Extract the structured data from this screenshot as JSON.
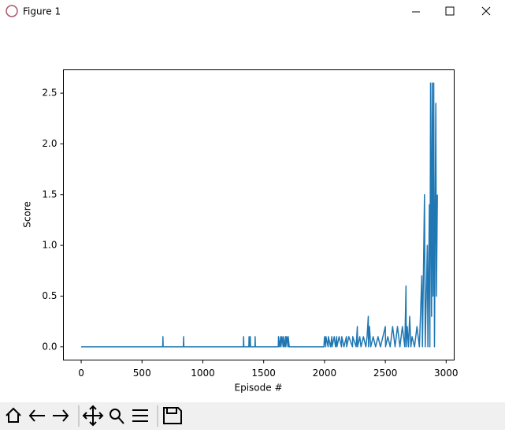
{
  "window": {
    "title": "Figure 1"
  },
  "chart_data": {
    "type": "line",
    "xlabel": "Episode #",
    "ylabel": "Score",
    "color": "#1f77b4",
    "x": [
      0,
      670,
      672,
      674,
      840,
      842,
      844,
      1333,
      1335,
      1337,
      1378,
      1380,
      1382,
      1388,
      1390,
      1392,
      1428,
      1430,
      1432,
      1620,
      1622,
      1630,
      1640,
      1642,
      1650,
      1660,
      1662,
      1670,
      1680,
      1682,
      1690,
      1700,
      1702,
      1710,
      1995,
      2000,
      2010,
      2012,
      2030,
      2032,
      2050,
      2060,
      2062,
      2080,
      2090,
      2100,
      2102,
      2120,
      2140,
      2142,
      2160,
      2180,
      2182,
      2200,
      2230,
      2232,
      2260,
      2270,
      2272,
      2290,
      2300,
      2320,
      2340,
      2350,
      2360,
      2362,
      2370,
      2380,
      2400,
      2420,
      2440,
      2460,
      2480,
      2500,
      2502,
      2520,
      2540,
      2560,
      2580,
      2600,
      2620,
      2640,
      2660,
      2670,
      2672,
      2680,
      2690,
      2700,
      2710,
      2720,
      2740,
      2760,
      2780,
      2800,
      2805,
      2822,
      2828,
      2845,
      2850,
      2862,
      2866,
      2872,
      2880,
      2886,
      2892,
      2898,
      2904,
      2915,
      2920,
      2928
    ],
    "values": [
      0,
      0,
      0.1,
      0,
      0,
      0.1,
      0,
      0,
      0.1,
      0,
      0,
      0.1,
      0,
      0,
      0.1,
      0,
      0,
      0.1,
      0,
      0,
      0.1,
      0,
      0.1,
      0,
      0.1,
      0,
      0.1,
      0,
      0.1,
      0,
      0.1,
      0,
      0.1,
      0,
      0,
      0.1,
      0,
      0.1,
      0,
      0.1,
      0,
      0.1,
      0,
      0.1,
      0,
      0.1,
      0,
      0.1,
      0,
      0.1,
      0,
      0.1,
      0,
      0.1,
      0,
      0.1,
      0,
      0.2,
      0,
      0.1,
      0,
      0.1,
      0,
      0.1,
      0.3,
      0,
      0.2,
      0,
      0.1,
      0,
      0.1,
      0,
      0.1,
      0.2,
      0,
      0.1,
      0,
      0.2,
      0,
      0.2,
      0,
      0.2,
      0,
      0.6,
      0,
      0.2,
      0,
      0.3,
      0,
      0.1,
      0,
      0.2,
      0,
      0.7,
      0,
      1.5,
      0,
      1.0,
      0,
      1.4,
      0,
      2.6,
      0.3,
      2.6,
      0.5,
      2.6,
      0,
      2.4,
      0.5,
      1.5
    ],
    "xlim": [
      -146,
      3066
    ],
    "ylim": [
      -0.13,
      2.73
    ],
    "xticks": [
      0,
      500,
      1000,
      1500,
      2000,
      2500,
      3000
    ],
    "yticks": [
      {
        "value": 0,
        "label": "0.0"
      },
      {
        "value": 0.5,
        "label": "0.5"
      },
      {
        "value": 1,
        "label": "1.0"
      },
      {
        "value": 1.5,
        "label": "1.5"
      },
      {
        "value": 2,
        "label": "2.0"
      },
      {
        "value": 2.5,
        "label": "2.5"
      }
    ]
  }
}
